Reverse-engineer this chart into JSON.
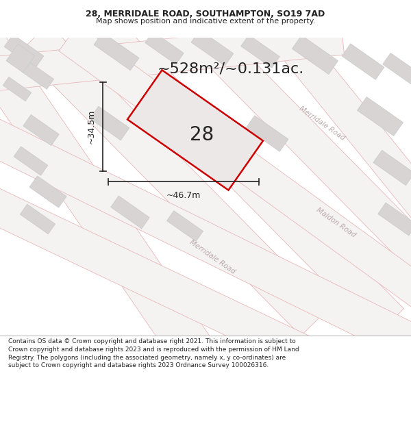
{
  "title_line1": "28, MERRIDALE ROAD, SOUTHAMPTON, SO19 7AD",
  "title_line2": "Map shows position and indicative extent of the property.",
  "area_text": "~528m²/~0.131ac.",
  "number_label": "28",
  "width_label": "~46.7m",
  "height_label": "~34.5m",
  "footer_text": "Contains OS data © Crown copyright and database right 2021. This information is subject to Crown copyright and database rights 2023 and is reproduced with the permission of HM Land Registry. The polygons (including the associated geometry, namely x, y co-ordinates) are subject to Crown copyright and database rights 2023 Ordnance Survey 100026316.",
  "map_bg": "#ede8e8",
  "road_fill": "#f5f2f2",
  "road_edge": "#e8b8b8",
  "building_fill": "#d8d4d4",
  "building_edge": "#cccccc",
  "prop_fill": "#ece8e8",
  "prop_edge": "#cc0000",
  "text_dark": "#222222",
  "text_road": "#bbaaaa",
  "footer_bg": "#ffffff",
  "title_fontsize": 9,
  "subtitle_fontsize": 8,
  "area_fontsize": 16,
  "label_fontsize": 9,
  "num_fontsize": 20,
  "road_label_fontsize": 7.5,
  "footer_fontsize": 6.5
}
